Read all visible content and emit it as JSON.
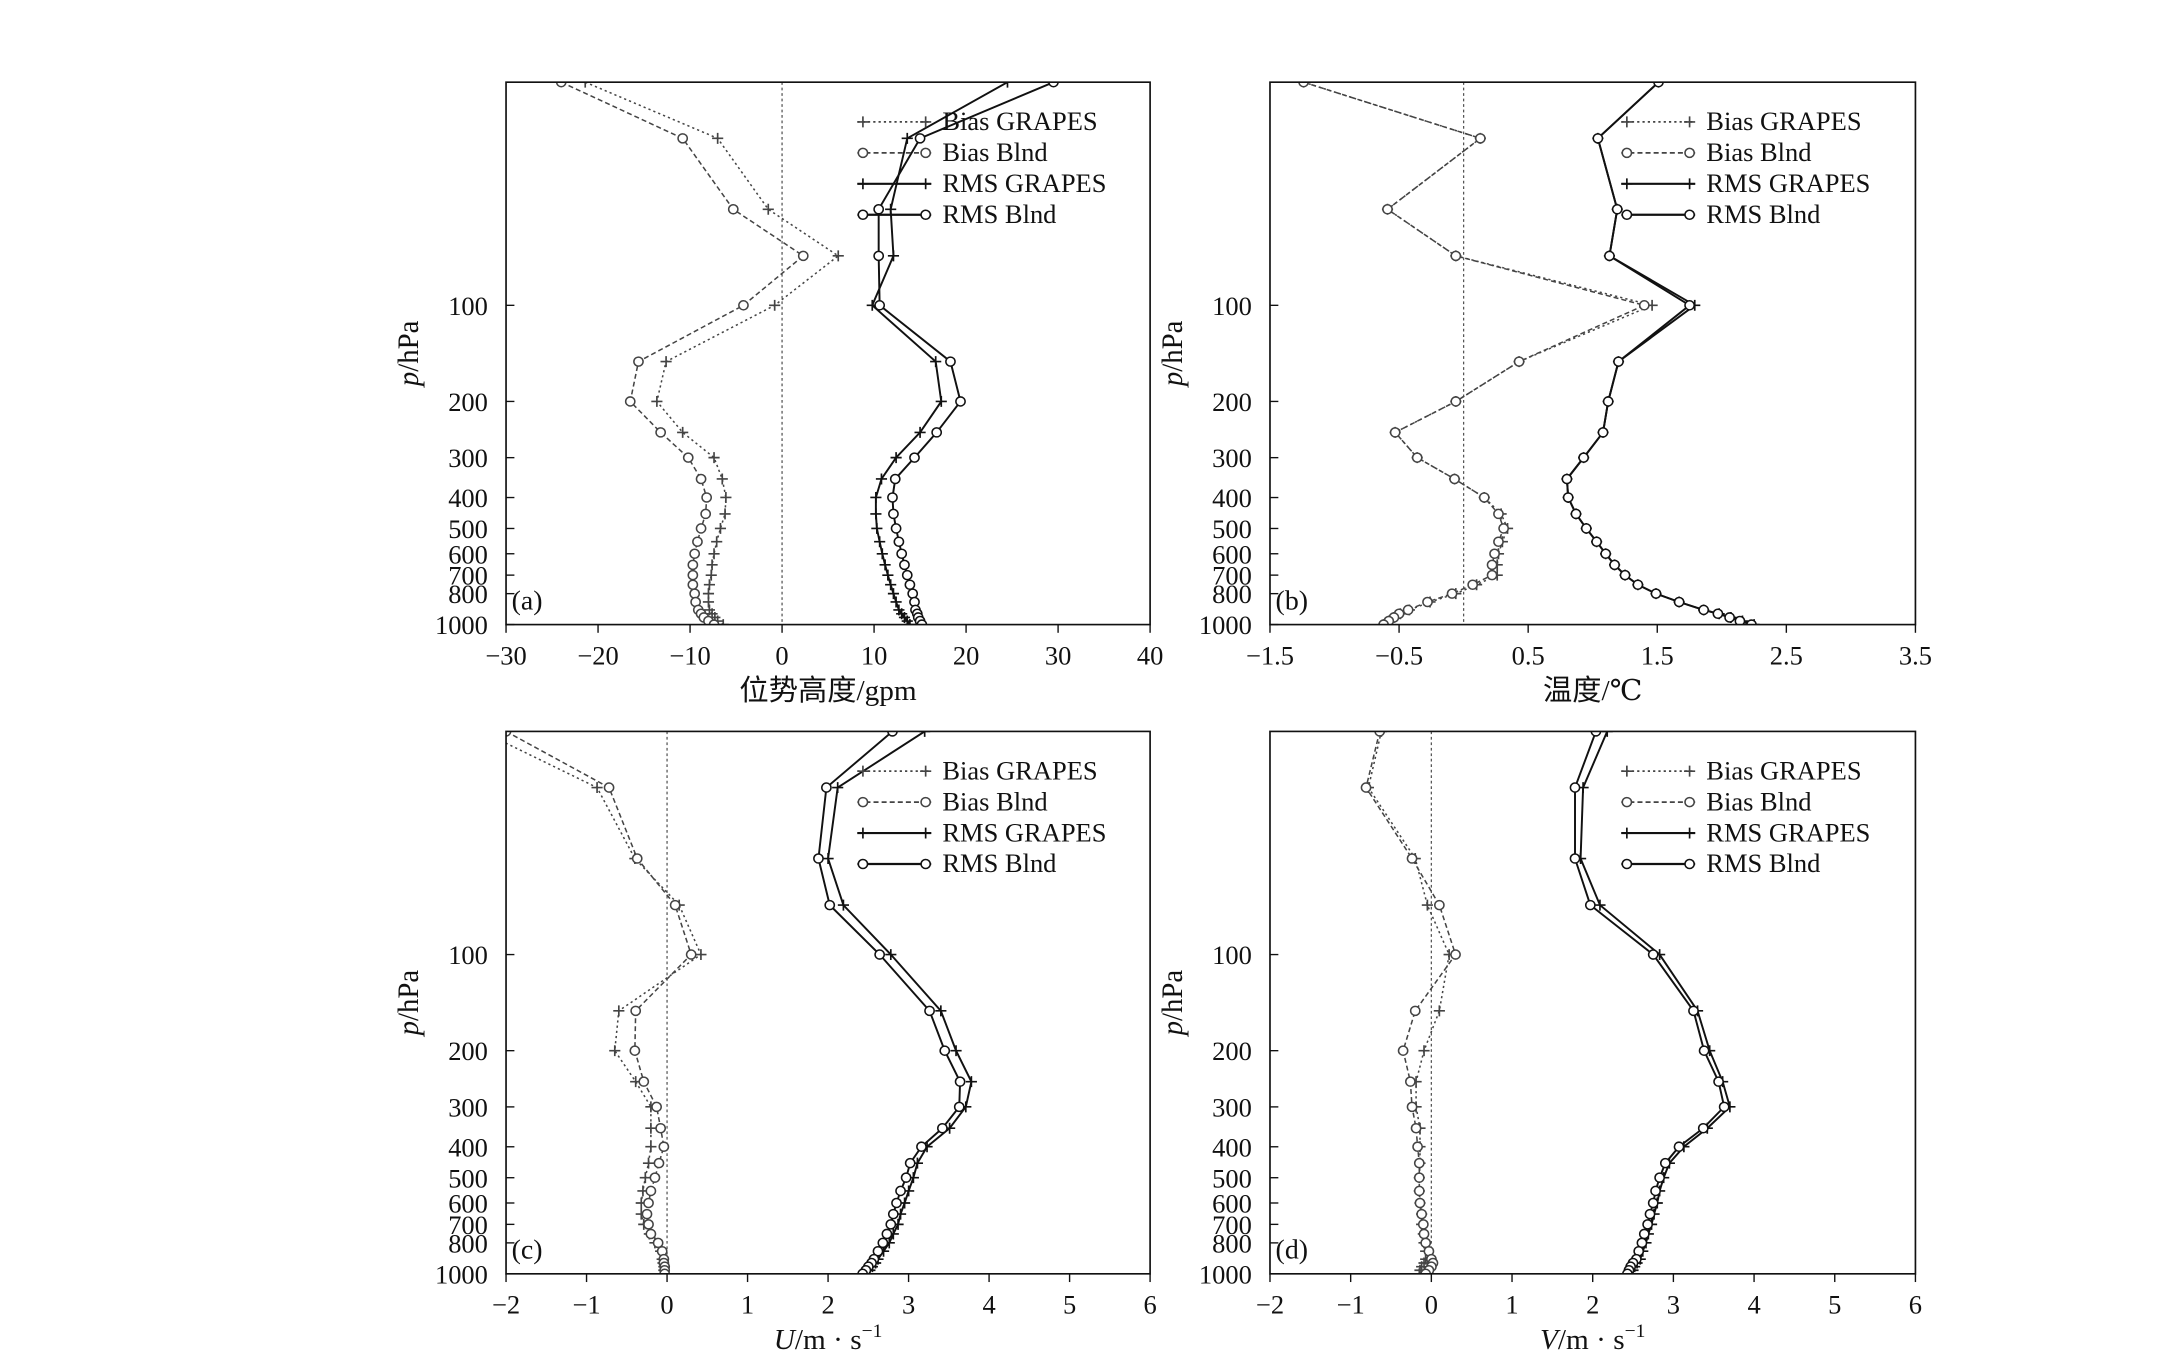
{
  "chart_data": [
    {
      "type": "line",
      "panel_label": "(a)",
      "xlabel": {
        "unit": "位势高度/gpm"
      },
      "ylabel": {
        "var": "p",
        "unit": "/hPa"
      },
      "xlim": [
        -30,
        40
      ],
      "xticks": [
        -30,
        -20,
        -10,
        0,
        10,
        20,
        30,
        40
      ],
      "ylim": [
        1000,
        20
      ],
      "y_scale": "log",
      "yticks": [
        100,
        200,
        300,
        400,
        500,
        600,
        700,
        800,
        1000
      ],
      "reference_line_x": 0,
      "grid": false,
      "legend_position": "top-right",
      "y": [
        20,
        30,
        50,
        70,
        100,
        150,
        200,
        250,
        300,
        350,
        400,
        450,
        500,
        550,
        600,
        650,
        700,
        750,
        800,
        850,
        900,
        925,
        950,
        975,
        1000
      ],
      "series": [
        {
          "name": "Bias GRAPES",
          "line_style": "dotted",
          "marker": "plus",
          "color": "#444444",
          "x": [
            -21.4,
            -7.0,
            -1.5,
            6.1,
            -0.8,
            -12.6,
            -13.6,
            -10.8,
            -7.4,
            -6.5,
            -6.1,
            -6.2,
            -6.7,
            -7.1,
            -7.4,
            -7.6,
            -7.7,
            -7.9,
            -8.0,
            -8.0,
            -7.9,
            -7.6,
            -7.3,
            -7.0,
            -6.4
          ]
        },
        {
          "name": "Bias Blnd",
          "line_style": "dashed",
          "marker": "circle",
          "color": "#444444",
          "x": [
            -24.0,
            -10.8,
            -5.3,
            2.3,
            -4.2,
            -15.6,
            -16.5,
            -13.2,
            -10.2,
            -8.8,
            -8.2,
            -8.3,
            -8.8,
            -9.2,
            -9.5,
            -9.7,
            -9.7,
            -9.7,
            -9.5,
            -9.4,
            -9.1,
            -8.8,
            -8.5,
            -8.0,
            -7.4
          ]
        },
        {
          "name": "RMS GRAPES",
          "line_style": "solid",
          "marker": "plus",
          "color": "#111111",
          "x": [
            24.5,
            13.6,
            11.8,
            12.1,
            9.8,
            16.7,
            17.3,
            15.0,
            12.4,
            10.8,
            10.2,
            10.2,
            10.3,
            10.6,
            10.9,
            11.2,
            11.5,
            11.8,
            12.1,
            12.4,
            12.7,
            13.0,
            13.3,
            13.6,
            13.9
          ]
        },
        {
          "name": "RMS Blnd",
          "line_style": "solid",
          "marker": "circle",
          "color": "#111111",
          "x": [
            29.5,
            15.0,
            10.5,
            10.5,
            10.6,
            18.3,
            19.4,
            16.8,
            14.4,
            12.3,
            12.0,
            12.1,
            12.4,
            12.7,
            13.0,
            13.3,
            13.6,
            13.9,
            14.2,
            14.4,
            14.5,
            14.7,
            14.8,
            15.0,
            15.2
          ]
        }
      ]
    },
    {
      "type": "line",
      "panel_label": "(b)",
      "xlabel": {
        "unit": "温度/℃"
      },
      "ylabel": {
        "var": "p",
        "unit": "/hPa"
      },
      "xlim": [
        -1.5,
        3.5
      ],
      "xticks": [
        -1.5,
        -0.5,
        0.5,
        1.5,
        2.5,
        3.5
      ],
      "ylim": [
        1000,
        20
      ],
      "y_scale": "log",
      "yticks": [
        100,
        200,
        300,
        400,
        500,
        600,
        700,
        800,
        1000
      ],
      "reference_line_x": 0,
      "grid": false,
      "legend_position": "top-right",
      "y": [
        20,
        30,
        50,
        70,
        100,
        150,
        200,
        250,
        300,
        350,
        400,
        450,
        500,
        550,
        600,
        650,
        700,
        750,
        800,
        850,
        900,
        925,
        950,
        975,
        1000
      ],
      "series": [
        {
          "name": "Bias GRAPES",
          "line_style": "dotted",
          "marker": "plus",
          "color": "#444444",
          "x": [
            -1.24,
            0.13,
            -0.59,
            -0.06,
            1.46,
            0.43,
            -0.06,
            -0.53,
            -0.36,
            -0.07,
            0.16,
            0.29,
            0.34,
            0.3,
            0.27,
            0.26,
            0.26,
            0.1,
            -0.06,
            -0.26,
            -0.42,
            -0.49,
            -0.54,
            -0.58,
            -0.62
          ]
        },
        {
          "name": "Bias Blnd",
          "line_style": "dashed",
          "marker": "circle",
          "color": "#444444",
          "x": [
            -1.24,
            0.13,
            -0.59,
            -0.06,
            1.4,
            0.43,
            -0.06,
            -0.53,
            -0.36,
            -0.07,
            0.16,
            0.27,
            0.31,
            0.27,
            0.24,
            0.22,
            0.22,
            0.07,
            -0.09,
            -0.28,
            -0.43,
            -0.5,
            -0.54,
            -0.58,
            -0.62
          ]
        },
        {
          "name": "RMS GRAPES",
          "line_style": "solid",
          "marker": "plus",
          "color": "#111111",
          "x": [
            1.51,
            1.04,
            1.19,
            1.13,
            1.79,
            1.2,
            1.12,
            1.08,
            0.93,
            0.8,
            0.81,
            0.87,
            0.95,
            1.03,
            1.1,
            1.17,
            1.25,
            1.35,
            1.49,
            1.67,
            1.86,
            1.98,
            2.07,
            2.16,
            2.25
          ]
        },
        {
          "name": "RMS Blnd",
          "line_style": "solid",
          "marker": "circle",
          "color": "#111111",
          "x": [
            1.51,
            1.04,
            1.19,
            1.13,
            1.75,
            1.2,
            1.12,
            1.08,
            0.93,
            0.8,
            0.81,
            0.87,
            0.95,
            1.03,
            1.1,
            1.17,
            1.25,
            1.35,
            1.49,
            1.67,
            1.86,
            1.97,
            2.06,
            2.14,
            2.23
          ]
        }
      ]
    },
    {
      "type": "line",
      "panel_label": "(c)",
      "xlabel": {
        "var": "U",
        "unit": "/m · s",
        "exp": "−1"
      },
      "ylabel": {
        "var": "p",
        "unit": "/hPa"
      },
      "xlim": [
        -2,
        6
      ],
      "xticks": [
        -2,
        -1,
        0,
        1,
        2,
        3,
        4,
        5,
        6
      ],
      "ylim": [
        1000,
        20
      ],
      "y_scale": "log",
      "yticks": [
        100,
        200,
        300,
        400,
        500,
        600,
        700,
        800,
        1000
      ],
      "reference_line_x": 0,
      "grid": false,
      "legend_position": "top-right",
      "y": [
        20,
        30,
        50,
        70,
        100,
        150,
        200,
        250,
        300,
        350,
        400,
        450,
        500,
        550,
        600,
        650,
        700,
        750,
        800,
        850,
        900,
        925,
        950,
        975,
        1000
      ],
      "series": [
        {
          "name": "Bias GRAPES",
          "line_style": "dotted",
          "marker": "plus",
          "color": "#444444",
          "x": [
            -2.3,
            -0.87,
            -0.4,
            0.15,
            0.42,
            -0.6,
            -0.65,
            -0.39,
            -0.2,
            -0.2,
            -0.2,
            -0.23,
            -0.27,
            -0.3,
            -0.32,
            -0.32,
            -0.29,
            -0.22,
            -0.15,
            -0.08,
            -0.06,
            -0.05,
            -0.04,
            -0.04,
            -0.03
          ]
        },
        {
          "name": "Bias Blnd",
          "line_style": "dashed",
          "marker": "circle",
          "color": "#444444",
          "x": [
            -2.0,
            -0.72,
            -0.37,
            0.1,
            0.3,
            -0.39,
            -0.4,
            -0.29,
            -0.13,
            -0.08,
            -0.04,
            -0.1,
            -0.15,
            -0.2,
            -0.23,
            -0.25,
            -0.23,
            -0.2,
            -0.11,
            -0.06,
            -0.04,
            -0.04,
            -0.03,
            -0.03,
            -0.03
          ]
        },
        {
          "name": "RMS GRAPES",
          "line_style": "solid",
          "marker": "plus",
          "color": "#111111",
          "x": [
            3.2,
            2.12,
            2.0,
            2.19,
            2.78,
            3.4,
            3.59,
            3.78,
            3.71,
            3.51,
            3.23,
            3.11,
            3.06,
            3.0,
            2.95,
            2.9,
            2.87,
            2.81,
            2.76,
            2.69,
            2.62,
            2.59,
            2.55,
            2.52,
            2.48
          ]
        },
        {
          "name": "RMS Blnd",
          "line_style": "solid",
          "marker": "circle",
          "color": "#111111",
          "x": [
            2.8,
            1.98,
            1.88,
            2.02,
            2.64,
            3.26,
            3.45,
            3.64,
            3.63,
            3.42,
            3.16,
            3.02,
            2.97,
            2.9,
            2.85,
            2.81,
            2.78,
            2.73,
            2.68,
            2.62,
            2.57,
            2.54,
            2.5,
            2.47,
            2.43
          ]
        }
      ]
    },
    {
      "type": "line",
      "panel_label": "(d)",
      "xlabel": {
        "var": "V",
        "unit": "/m · s",
        "exp": "−1"
      },
      "ylabel": {
        "var": "p",
        "unit": "/hPa"
      },
      "xlim": [
        -2,
        6
      ],
      "xticks": [
        -2,
        -1,
        0,
        1,
        2,
        3,
        4,
        5,
        6
      ],
      "ylim": [
        1000,
        20
      ],
      "y_scale": "log",
      "yticks": [
        100,
        200,
        300,
        400,
        500,
        600,
        700,
        800,
        1000
      ],
      "reference_line_x": 0,
      "grid": false,
      "legend_position": "top-right",
      "y": [
        20,
        30,
        50,
        70,
        100,
        150,
        200,
        250,
        300,
        350,
        400,
        450,
        500,
        550,
        600,
        650,
        700,
        750,
        800,
        850,
        900,
        925,
        950,
        975,
        1000
      ],
      "series": [
        {
          "name": "Bias GRAPES",
          "line_style": "dotted",
          "marker": "plus",
          "color": "#444444",
          "x": [
            -0.62,
            -0.78,
            -0.2,
            -0.05,
            0.22,
            0.1,
            -0.09,
            -0.19,
            -0.19,
            -0.14,
            -0.14,
            -0.14,
            -0.15,
            -0.15,
            -0.14,
            -0.12,
            -0.12,
            -0.1,
            -0.09,
            -0.07,
            -0.07,
            -0.09,
            -0.12,
            -0.14,
            -0.15
          ]
        },
        {
          "name": "Bias Blnd",
          "line_style": "dashed",
          "marker": "circle",
          "color": "#444444",
          "x": [
            -0.64,
            -0.81,
            -0.24,
            0.1,
            0.3,
            -0.2,
            -0.35,
            -0.26,
            -0.24,
            -0.19,
            -0.17,
            -0.15,
            -0.15,
            -0.15,
            -0.14,
            -0.12,
            -0.1,
            -0.09,
            -0.07,
            -0.03,
            0.0,
            0.02,
            0.0,
            -0.03,
            -0.07
          ]
        },
        {
          "name": "RMS GRAPES",
          "line_style": "solid",
          "marker": "plus",
          "color": "#111111",
          "x": [
            2.18,
            1.88,
            1.85,
            2.09,
            2.83,
            3.3,
            3.45,
            3.61,
            3.7,
            3.42,
            3.13,
            2.95,
            2.88,
            2.83,
            2.8,
            2.76,
            2.73,
            2.69,
            2.66,
            2.62,
            2.59,
            2.55,
            2.52,
            2.5,
            2.48
          ]
        },
        {
          "name": "RMS Blnd",
          "line_style": "solid",
          "marker": "circle",
          "color": "#111111",
          "x": [
            2.04,
            1.78,
            1.78,
            1.97,
            2.75,
            3.25,
            3.38,
            3.56,
            3.63,
            3.37,
            3.07,
            2.9,
            2.83,
            2.78,
            2.75,
            2.71,
            2.68,
            2.64,
            2.61,
            2.57,
            2.54,
            2.5,
            2.47,
            2.45,
            2.43
          ]
        }
      ]
    }
  ]
}
